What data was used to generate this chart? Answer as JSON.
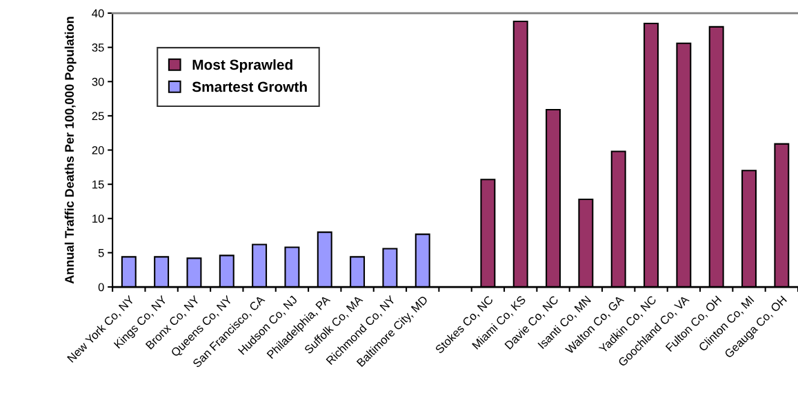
{
  "chart_data": {
    "type": "bar",
    "ylabel": "Annual Traffic Deaths Per 100,000 Population",
    "categories": [
      "New York Co, NY",
      "Kings Co, NY",
      "Bronx Co, NY",
      "Queens Co, NY",
      "San Francisco, CA",
      "Hudson Co, NJ",
      "Philadelphia, PA",
      "Suffolk Co, MA",
      "Richmond Co, NY",
      "Baltimore City, MD",
      null,
      "Stokes Co, NC",
      "Miami Co, KS",
      "Davie Co, NC",
      "Isanti Co, MN",
      "Walton Co, GA",
      "Yadkin Co, NC",
      "Goochland Co, VA",
      "Fulton Co, OH",
      "Clinton Co, MI",
      "Geauga Co, OH"
    ],
    "series": [
      {
        "name": "Most Sprawled",
        "color": "#993366",
        "values": [
          null,
          null,
          null,
          null,
          null,
          null,
          null,
          null,
          null,
          null,
          null,
          15.7,
          38.8,
          25.9,
          12.8,
          19.8,
          38.5,
          35.6,
          38.0,
          17.0,
          20.9
        ]
      },
      {
        "name": "Smartest Growth",
        "color": "#9999ff",
        "values": [
          4.4,
          4.4,
          4.2,
          4.6,
          6.2,
          5.8,
          8.0,
          4.4,
          5.6,
          7.7,
          null,
          null,
          null,
          null,
          null,
          null,
          null,
          null,
          null,
          null,
          null
        ]
      }
    ],
    "ylim": [
      0,
      40
    ],
    "yticks": [
      0,
      5,
      10,
      15,
      20,
      25,
      30,
      35,
      40
    ],
    "grid": false,
    "legend": "top left"
  }
}
